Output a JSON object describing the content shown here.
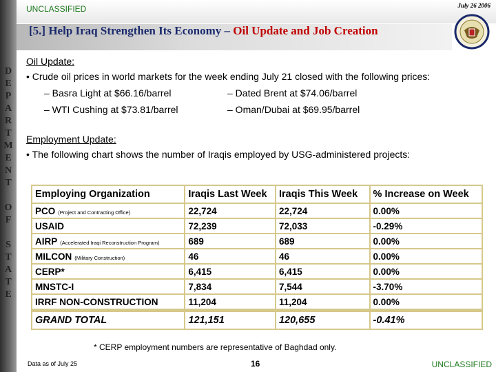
{
  "header": {
    "classification": "UNCLASSIFIED",
    "date": "July 26 2006",
    "title_main": "[5.] Help Iraq Strengthen Its Economy – ",
    "title_highlight": "Oil Update and Job Creation"
  },
  "sidebar": {
    "letters": [
      "D",
      "E",
      "P",
      "A",
      "R",
      "T",
      "M",
      "E",
      "N",
      "T",
      "O",
      "F",
      "S",
      "T",
      "A",
      "T",
      "E"
    ]
  },
  "oil": {
    "heading": "Oil Update:",
    "intro": "Crude oil prices in world markets for the week ending July 21 closed with the following prices:",
    "prices": [
      [
        "– Basra Light at $66.16/barrel",
        "– Dated Brent at $74.06/barrel"
      ],
      [
        "– WTI Cushing at $73.81/barrel",
        "– Oman/Dubai at $69.95/barrel"
      ]
    ]
  },
  "employment": {
    "heading": "Employment Update:",
    "intro": "The following chart shows the number of Iraqis employed by USG-administered projects:"
  },
  "table": {
    "header": [
      "Employing Organization",
      "Iraqis Last Week",
      "Iraqis This Week",
      "% Increase on Week"
    ],
    "rows": [
      {
        "org": "PCO",
        "note": "(Project and Contracting Office)",
        "cells": [
          "22,724",
          "22,724",
          "0.00%"
        ]
      },
      {
        "org": "USAID",
        "cells": [
          "72,239",
          "72,033",
          "-0.29%"
        ]
      },
      {
        "org": "AIRP",
        "note": "(Accelerated Iraqi Reconstruction Program)",
        "cells": [
          "689",
          "689",
          "0.00%"
        ]
      },
      {
        "org": "MILCON",
        "note": "(Military Construction)",
        "cells": [
          "46",
          "46",
          "0.00%"
        ]
      },
      {
        "org": "CERP*",
        "cells": [
          "6,415",
          "6,415",
          "0.00%"
        ]
      },
      {
        "org": "MNSTC-I",
        "cells": [
          "7,834",
          "7,544",
          "-3.70%"
        ]
      },
      {
        "org": "IRRF NON-CONSTRUCTION",
        "cells": [
          "11,204",
          "11,204",
          "0.00%"
        ]
      }
    ],
    "total": {
      "org": "GRAND TOTAL",
      "cells": [
        "121,151",
        "120,655",
        "-0.41%"
      ]
    }
  },
  "footnote": "* CERP employment numbers are representative of Baghdad only.",
  "footer": {
    "left": "Data as of July 25",
    "page": "16",
    "right": "UNCLASSIFIED"
  }
}
